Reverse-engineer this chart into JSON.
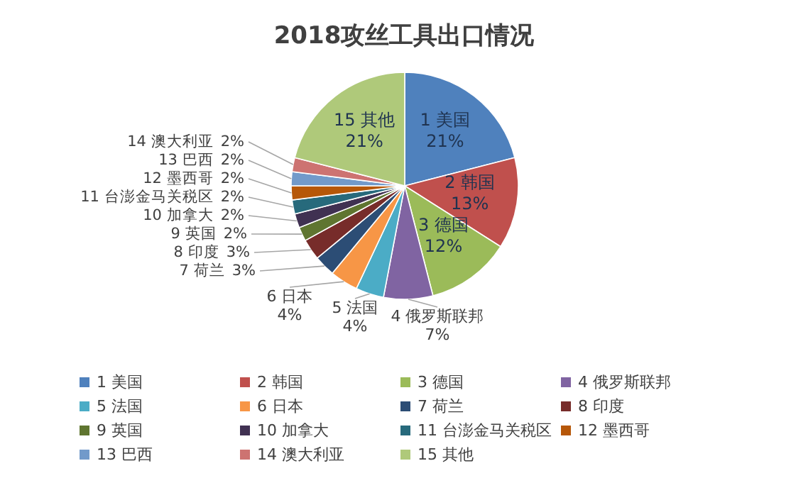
{
  "chart_data": {
    "type": "pie",
    "title": "2018攻丝工具出口情况",
    "categories": [
      "1 美国",
      "2 韩国",
      "3 德国",
      "4 俄罗斯联邦",
      "5 法国",
      "6 日本",
      "7 荷兰",
      "8 印度",
      "9 英国",
      "10 加拿大",
      "11 台澎金马关税区",
      "12 墨西哥",
      "13 巴西",
      "14 澳大利亚",
      "15 其他"
    ],
    "values": [
      21,
      13,
      12,
      7,
      4,
      4,
      3,
      3,
      2,
      2,
      2,
      2,
      2,
      2,
      21
    ],
    "colors": [
      "#4f81bd",
      "#c0504d",
      "#9bbb59",
      "#8064a2",
      "#4bacc6",
      "#f79646",
      "#2c4d75",
      "#772c2a",
      "#5f7530",
      "#403152",
      "#276a7c",
      "#b65708",
      "#729aca",
      "#cd7371",
      "#afc97a"
    ],
    "value_labels": [
      "21%",
      "13%",
      "12%",
      "7%",
      "4%",
      "4%",
      "3%",
      "3%",
      "2%",
      "2%",
      "2%",
      "2%",
      "2%",
      "2%",
      "21%"
    ],
    "legend": "bottom"
  }
}
